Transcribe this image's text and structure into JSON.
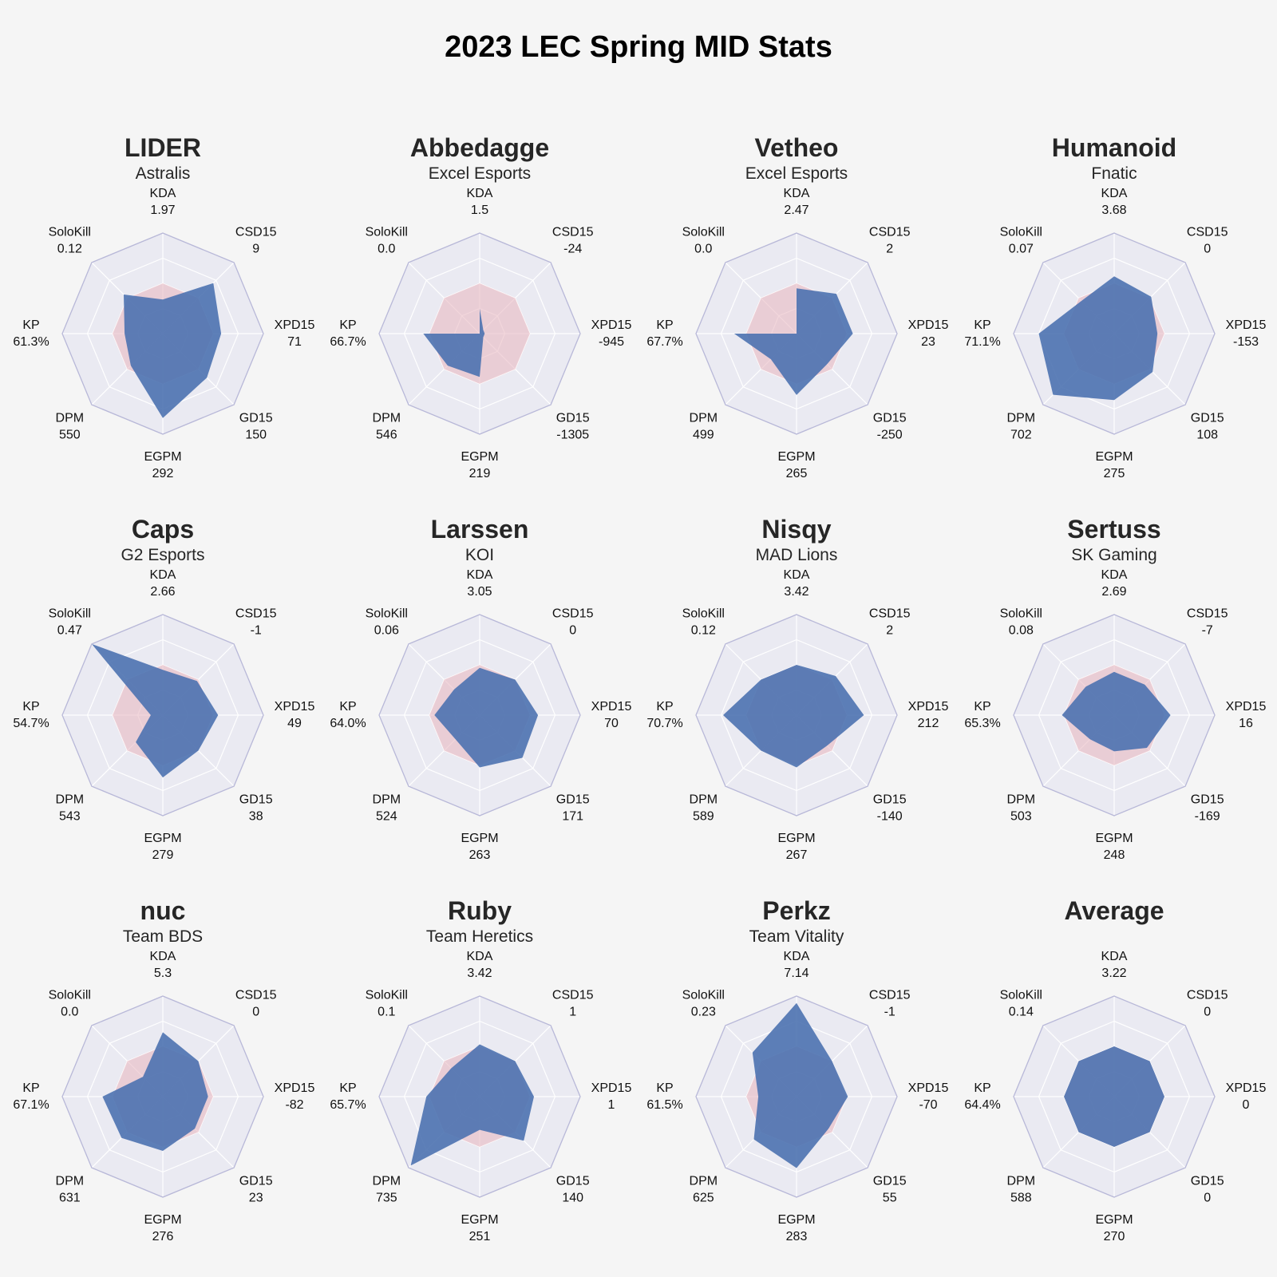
{
  "page": {
    "title": "2023 LEC Spring MID Stats"
  },
  "chart_data": {
    "type": "radar",
    "title": "2023 LEC Spring MID Stats",
    "axes": [
      "KDA",
      "CSD15",
      "XPD15",
      "GD15",
      "EGPM",
      "DPM",
      "KP",
      "SoloKill"
    ],
    "colors": {
      "player_fill": "#4c72b0",
      "average_fill": "#e8b4bd",
      "grid_fill": "#eaeaf2",
      "grid_line": "#ffffff",
      "outline": "#b8b8d8"
    },
    "average_level": 0.5,
    "panels": [
      {
        "player": "LIDER",
        "team": "Astralis",
        "values": [
          "1.97",
          "9",
          "71",
          "150",
          "292",
          "550",
          "61.3%",
          "0.12"
        ],
        "levels": [
          0.34,
          0.71,
          0.58,
          0.62,
          0.84,
          0.45,
          0.38,
          0.55
        ]
      },
      {
        "player": "Abbedagge",
        "team": "Excel Esports",
        "values": [
          "1.5",
          "-24",
          "-945",
          "-1305",
          "219",
          "546",
          "66.7%",
          "0.0"
        ],
        "levels": [
          0.25,
          0.05,
          0.05,
          0.05,
          0.43,
          0.45,
          0.56,
          0.0
        ]
      },
      {
        "player": "Vetheo",
        "team": "Excel Esports",
        "values": [
          "2.47",
          "2",
          "23",
          "-250",
          "265",
          "499",
          "67.7%",
          "0.0"
        ],
        "levels": [
          0.45,
          0.56,
          0.56,
          0.43,
          0.61,
          0.36,
          0.62,
          0.0
        ]
      },
      {
        "player": "Humanoid",
        "team": "Fnatic",
        "values": [
          "3.68",
          "0",
          "-153",
          "108",
          "275",
          "702",
          "71.1%",
          "0.07"
        ],
        "levels": [
          0.57,
          0.52,
          0.43,
          0.54,
          0.66,
          0.86,
          0.75,
          0.46
        ]
      },
      {
        "player": "Caps",
        "team": "G2 Esports",
        "values": [
          "2.66",
          "-1",
          "49",
          "38",
          "279",
          "543",
          "54.7%",
          "0.47"
        ],
        "levels": [
          0.45,
          0.48,
          0.55,
          0.5,
          0.62,
          0.38,
          0.12,
          1.0
        ]
      },
      {
        "player": "Larssen",
        "team": "KOI",
        "values": [
          "3.05",
          "0",
          "70",
          "171",
          "263",
          "524",
          "64.0%",
          "0.06"
        ],
        "levels": [
          0.47,
          0.5,
          0.58,
          0.6,
          0.52,
          0.34,
          0.45,
          0.36
        ]
      },
      {
        "player": "Nisqy",
        "team": "MAD Lions",
        "values": [
          "3.42",
          "2",
          "212",
          "-140",
          "267",
          "589",
          "70.7%",
          "0.12"
        ],
        "levels": [
          0.5,
          0.55,
          0.67,
          0.43,
          0.52,
          0.5,
          0.73,
          0.5
        ]
      },
      {
        "player": "Sertuss",
        "team": "SK Gaming",
        "values": [
          "2.69",
          "-7",
          "16",
          "-169",
          "248",
          "503",
          "65.3%",
          "0.08"
        ],
        "levels": [
          0.43,
          0.43,
          0.56,
          0.46,
          0.36,
          0.34,
          0.52,
          0.4
        ]
      },
      {
        "player": "nuc",
        "team": "Team BDS",
        "values": [
          "5.3",
          "0",
          "-82",
          "23",
          "276",
          "631",
          "67.1%",
          "0.0"
        ],
        "levels": [
          0.64,
          0.5,
          0.45,
          0.45,
          0.54,
          0.58,
          0.6,
          0.28
        ]
      },
      {
        "player": "Ruby",
        "team": "Team Heretics",
        "values": [
          "3.42",
          "1",
          "1",
          "140",
          "251",
          "735",
          "65.7%",
          "0.1"
        ],
        "levels": [
          0.52,
          0.5,
          0.54,
          0.62,
          0.33,
          0.97,
          0.53,
          0.4
        ]
      },
      {
        "player": "Perkz",
        "team": "Team Vitality",
        "values": [
          "7.14",
          "-1",
          "-70",
          "55",
          "283",
          "625",
          "61.5%",
          "0.23"
        ],
        "levels": [
          0.93,
          0.5,
          0.51,
          0.45,
          0.71,
          0.6,
          0.38,
          0.62
        ]
      },
      {
        "player": "Average",
        "team": "",
        "values": [
          "3.22",
          "0",
          "0",
          "0",
          "270",
          "588",
          "64.4%",
          "0.14"
        ],
        "levels": [
          0.5,
          0.5,
          0.5,
          0.5,
          0.5,
          0.5,
          0.5,
          0.5
        ]
      }
    ]
  }
}
